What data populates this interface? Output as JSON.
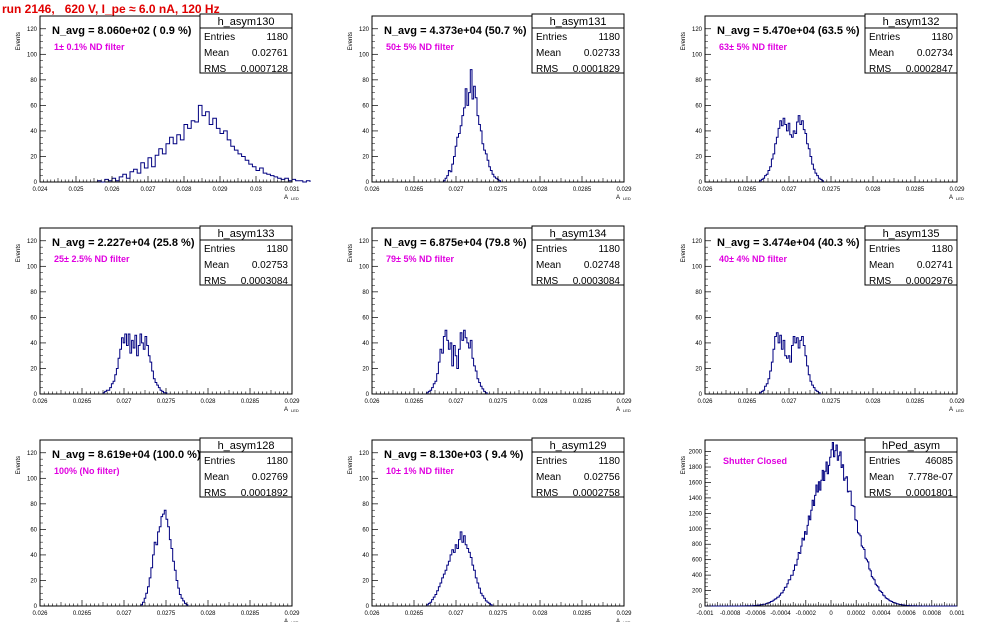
{
  "page_title": "run 2146,   620 V, I_pe ≈ 6.0 nA, 120 Hz",
  "colors": {
    "title": "#e00000",
    "label": "#e000e0",
    "histogram": "#000080",
    "axis": "#000000",
    "frame": "#000000"
  },
  "chart_data": [
    {
      "type": "histogram",
      "name": "h_asym130",
      "title": "N_avg = 8.060e+02 ( 0.9 %)",
      "label": "1± 0.1% ND filter",
      "ylabel": "Events",
      "xlabel": "A_LED",
      "xlim": [
        0.024,
        0.031
      ],
      "ylim": [
        0,
        130
      ],
      "xticks": [
        0.024,
        0.025,
        0.026,
        0.027,
        0.028,
        0.029,
        0.03,
        0.031
      ],
      "xtick_labels": [
        "0.024",
        "0.025",
        "0.026",
        "0.027",
        "0.028",
        "0.029",
        "0.03",
        "0.031"
      ],
      "yticks": [
        0,
        20,
        40,
        60,
        80,
        100,
        120
      ],
      "stats": [
        [
          "Entries",
          "1180"
        ],
        [
          "Mean",
          "0.02761"
        ],
        [
          "RMS",
          "0.0007128"
        ]
      ],
      "bin_edges": [
        0.0256,
        0.0261
      ],
      "counts": [
        1,
        0,
        2,
        1,
        3,
        1,
        4,
        6,
        3,
        8,
        10,
        7,
        15,
        11,
        19,
        12,
        21,
        26,
        22,
        30,
        35,
        30,
        37,
        33,
        45,
        42,
        48,
        47,
        60,
        52,
        55,
        45,
        50,
        42,
        38,
        40,
        33,
        28,
        25,
        22,
        20,
        17,
        14,
        12,
        9,
        11,
        7,
        6,
        5,
        4,
        3,
        2,
        3,
        1,
        2,
        1,
        1,
        0,
        1
      ],
      "bin_width": 0.0001
    },
    {
      "type": "histogram",
      "name": "h_asym131",
      "title": "N_avg = 4.373e+04 (50.7 %)",
      "label": "50± 5% ND filter",
      "ylabel": "Events",
      "xlabel": "A_LED",
      "xlim": [
        0.026,
        0.029
      ],
      "ylim": [
        0,
        130
      ],
      "xticks": [
        0.026,
        0.0265,
        0.027,
        0.0275,
        0.028,
        0.0285,
        0.029
      ],
      "xtick_labels": [
        "0.026",
        "0.0265",
        "0.027",
        "0.0275",
        "0.028",
        "0.0285",
        "0.029"
      ],
      "yticks": [
        0,
        20,
        40,
        60,
        80,
        100,
        120
      ],
      "stats": [
        [
          "Entries",
          "1180"
        ],
        [
          "Mean",
          "0.02733"
        ],
        [
          "RMS",
          "0.0001829"
        ]
      ],
      "bin_start": 0.02685,
      "bin_width": 2e-05,
      "counts": [
        1,
        3,
        5,
        9,
        8,
        14,
        20,
        28,
        35,
        38,
        44,
        52,
        58,
        73,
        60,
        70,
        88,
        65,
        75,
        66,
        52,
        45,
        40,
        30,
        25,
        22,
        17,
        12,
        9,
        6,
        4,
        3,
        2,
        1
      ]
    },
    {
      "type": "histogram",
      "name": "h_asym132",
      "title": "N_avg = 5.470e+04 (63.5 %)",
      "label": "63± 5% ND filter",
      "ylabel": "Events",
      "xlabel": "A_LED",
      "xlim": [
        0.026,
        0.029
      ],
      "ylim": [
        0,
        130
      ],
      "xticks": [
        0.026,
        0.0265,
        0.027,
        0.0275,
        0.028,
        0.0285,
        0.029
      ],
      "xtick_labels": [
        "0.026",
        "0.0265",
        "0.027",
        "0.0275",
        "0.028",
        "0.0285",
        "0.029"
      ],
      "yticks": [
        0,
        20,
        40,
        60,
        80,
        100,
        120
      ],
      "stats": [
        [
          "Entries",
          "1180"
        ],
        [
          "Mean",
          "0.02734"
        ],
        [
          "RMS",
          "0.0002847"
        ]
      ],
      "bin_start": 0.02665,
      "bin_width": 2e-05,
      "counts": [
        1,
        2,
        3,
        5,
        6,
        9,
        12,
        18,
        22,
        30,
        35,
        42,
        48,
        44,
        50,
        45,
        40,
        46,
        37,
        35,
        40,
        38,
        47,
        52,
        45,
        48,
        41,
        38,
        30,
        26,
        20,
        14,
        10,
        7,
        5,
        3,
        2,
        1
      ]
    },
    {
      "type": "histogram",
      "name": "h_asym133",
      "title": "N_avg = 2.227e+04 (25.8 %)",
      "label": "25± 2.5% ND filter",
      "ylabel": "Events",
      "xlabel": "A_LED",
      "xlim": [
        0.026,
        0.029
      ],
      "ylim": [
        0,
        130
      ],
      "xticks": [
        0.026,
        0.0265,
        0.027,
        0.0275,
        0.028,
        0.0285,
        0.029
      ],
      "xtick_labels": [
        "0.026",
        "0.0265",
        "0.027",
        "0.0275",
        "0.028",
        "0.0285",
        "0.029"
      ],
      "yticks": [
        0,
        20,
        40,
        60,
        80,
        100,
        120
      ],
      "stats": [
        [
          "Entries",
          "1180"
        ],
        [
          "Mean",
          "0.02753"
        ],
        [
          "RMS",
          "0.0003084"
        ]
      ],
      "bin_start": 0.02675,
      "bin_width": 2e-05,
      "counts": [
        1,
        2,
        3,
        3,
        5,
        8,
        10,
        15,
        20,
        28,
        35,
        44,
        40,
        47,
        38,
        47,
        32,
        42,
        36,
        46,
        30,
        38,
        47,
        40,
        35,
        45,
        38,
        30,
        25,
        18,
        12,
        9,
        7,
        5,
        3,
        2,
        1,
        1
      ]
    },
    {
      "type": "histogram",
      "name": "h_asym134",
      "title": "N_avg = 6.875e+04 (79.8 %)",
      "label": "79± 5% ND filter",
      "ylabel": "Events",
      "xlabel": "A_LED",
      "xlim": [
        0.026,
        0.029
      ],
      "ylim": [
        0,
        130
      ],
      "xticks": [
        0.026,
        0.0265,
        0.027,
        0.0275,
        0.028,
        0.0285,
        0.029
      ],
      "xtick_labels": [
        "0.026",
        "0.0265",
        "0.027",
        "0.0275",
        "0.028",
        "0.0285",
        "0.029"
      ],
      "yticks": [
        0,
        20,
        40,
        60,
        80,
        100,
        120
      ],
      "stats": [
        [
          "Entries",
          "1180"
        ],
        [
          "Mean",
          "0.02748"
        ],
        [
          "RMS",
          "0.0003084"
        ]
      ],
      "bin_start": 0.02665,
      "bin_width": 2e-05,
      "counts": [
        1,
        2,
        3,
        5,
        8,
        10,
        16,
        25,
        35,
        32,
        45,
        50,
        42,
        35,
        40,
        22,
        38,
        30,
        20,
        35,
        48,
        42,
        50,
        44,
        40,
        36,
        42,
        28,
        22,
        18,
        12,
        9,
        6,
        4,
        2,
        1
      ]
    },
    {
      "type": "histogram",
      "name": "h_asym135",
      "title": "N_avg = 3.474e+04 (40.3 %)",
      "label": "40± 4% ND filter",
      "ylabel": "Events",
      "xlabel": "A_LED",
      "xlim": [
        0.026,
        0.029
      ],
      "ylim": [
        0,
        130
      ],
      "xticks": [
        0.026,
        0.0265,
        0.027,
        0.0275,
        0.028,
        0.0285,
        0.029
      ],
      "xtick_labels": [
        "0.026",
        "0.0265",
        "0.027",
        "0.0275",
        "0.028",
        "0.0285",
        "0.029"
      ],
      "yticks": [
        0,
        20,
        40,
        60,
        80,
        100,
        120
      ],
      "stats": [
        [
          "Entries",
          "1180"
        ],
        [
          "Mean",
          "0.02741"
        ],
        [
          "RMS",
          "0.0002976"
        ]
      ],
      "bin_start": 0.02665,
      "bin_width": 2e-05,
      "counts": [
        1,
        2,
        3,
        6,
        8,
        12,
        18,
        25,
        35,
        45,
        48,
        40,
        46,
        35,
        42,
        30,
        28,
        30,
        25,
        38,
        45,
        40,
        44,
        36,
        42,
        45,
        38,
        30,
        22,
        15,
        10,
        7,
        5,
        3,
        2,
        1
      ]
    },
    {
      "type": "histogram",
      "name": "h_asym128",
      "title": "N_avg = 8.619e+04 (100.0 %)",
      "label": "100% (No filter)",
      "ylabel": "Events",
      "xlabel": "A_LED",
      "xlim": [
        0.026,
        0.029
      ],
      "ylim": [
        0,
        130
      ],
      "xticks": [
        0.026,
        0.0265,
        0.027,
        0.0275,
        0.028,
        0.0285,
        0.029
      ],
      "xtick_labels": [
        "0.026",
        "0.0265",
        "0.027",
        "0.0275",
        "0.028",
        "0.0285",
        "0.029"
      ],
      "yticks": [
        0,
        20,
        40,
        60,
        80,
        100,
        120
      ],
      "stats": [
        [
          "Entries",
          "1180"
        ],
        [
          "Mean",
          "0.02769"
        ],
        [
          "RMS",
          "0.0001892"
        ]
      ],
      "bin_start": 0.0272,
      "bin_width": 2e-05,
      "counts": [
        1,
        3,
        6,
        10,
        15,
        22,
        30,
        40,
        50,
        48,
        58,
        62,
        70,
        72,
        75,
        68,
        62,
        52,
        45,
        35,
        28,
        20,
        14,
        9,
        6,
        4,
        2,
        1
      ]
    },
    {
      "type": "histogram",
      "name": "h_asym129",
      "title": "N_avg = 8.130e+03 ( 9.4 %)",
      "label": "10± 1% ND filter",
      "ylabel": "Events",
      "xlabel": "A_LED",
      "xlim": [
        0.026,
        0.029
      ],
      "ylim": [
        0,
        130
      ],
      "xticks": [
        0.026,
        0.0265,
        0.027,
        0.0275,
        0.028,
        0.0285,
        0.029
      ],
      "xtick_labels": [
        "0.026",
        "0.0265",
        "0.027",
        "0.0275",
        "0.028",
        "0.0285",
        "0.029"
      ],
      "yticks": [
        0,
        20,
        40,
        60,
        80,
        100,
        120
      ],
      "stats": [
        [
          "Entries",
          "1180"
        ],
        [
          "Mean",
          "0.02756"
        ],
        [
          "RMS",
          "0.0002758"
        ]
      ],
      "bin_start": 0.02665,
      "bin_width": 2e-05,
      "counts": [
        1,
        2,
        3,
        5,
        7,
        9,
        12,
        15,
        18,
        22,
        25,
        28,
        32,
        35,
        40,
        44,
        42,
        48,
        45,
        52,
        58,
        50,
        55,
        48,
        45,
        42,
        38,
        32,
        28,
        22,
        18,
        14,
        10,
        8,
        6,
        4,
        3,
        2,
        1
      ]
    },
    {
      "type": "histogram",
      "name": "hPed_asym",
      "title": "",
      "label": "Shutter Closed",
      "ylabel": "Events",
      "xlabel": "",
      "xlim": [
        -0.001,
        0.001
      ],
      "ylim": [
        0,
        2150
      ],
      "xticks": [
        -0.001,
        -0.0008,
        -0.0006,
        -0.0004,
        -0.0002,
        0,
        0.0002,
        0.0004,
        0.0006,
        0.0008,
        0.001
      ],
      "xtick_labels": [
        "-0.001",
        "-0.0008",
        "-0.0006",
        "-0.0004",
        "-0.0002",
        "0",
        "0.0002",
        "0.0004",
        "0.0006",
        "0.0008",
        "0.001"
      ],
      "yticks": [
        0,
        200,
        400,
        600,
        800,
        1000,
        1200,
        1400,
        1600,
        1800,
        2000
      ],
      "stats": [
        [
          "Entries",
          "46085"
        ],
        [
          "Mean",
          "7.778e-07"
        ],
        [
          "RMS",
          "0.0001801"
        ]
      ],
      "gauss": {
        "mean": 8e-07,
        "sigma": 0.00018,
        "peak": 2050,
        "bin_width": 1e-05
      }
    }
  ]
}
